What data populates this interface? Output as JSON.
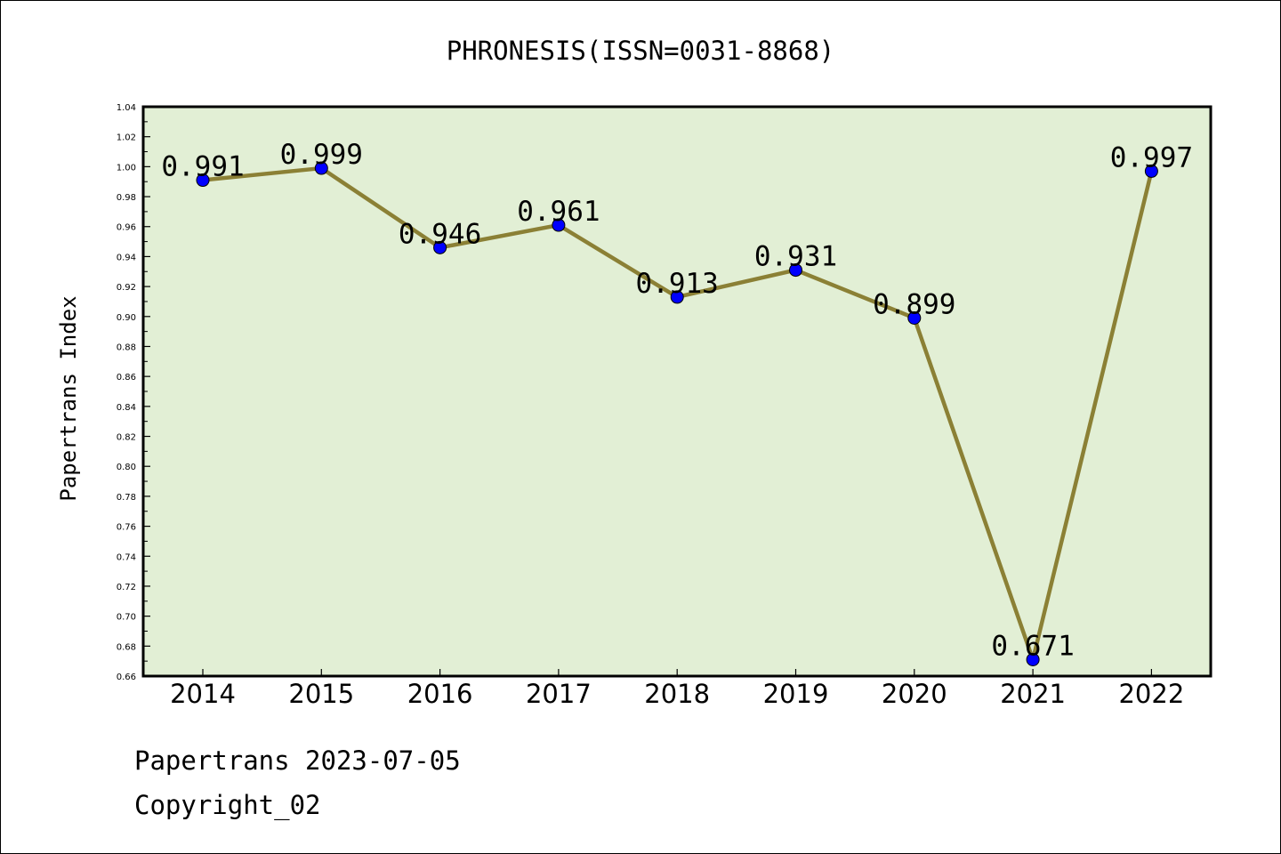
{
  "chart_data": {
    "type": "line",
    "title": "PHRONESIS(ISSN=0031-8868)",
    "xlabel": "",
    "ylabel": "Papertrans Index",
    "categories": [
      "2014",
      "2015",
      "2016",
      "2017",
      "2018",
      "2019",
      "2020",
      "2021",
      "2022"
    ],
    "values": [
      0.991,
      0.999,
      0.946,
      0.961,
      0.913,
      0.931,
      0.899,
      0.671,
      0.997
    ],
    "data_labels": [
      "0.991",
      "0.999",
      "0.946",
      "0.961",
      "0.913",
      "0.931",
      "0.899",
      "0.671",
      "0.997"
    ],
    "ylim": [
      0.66,
      1.04
    ],
    "yticks": [
      "0.66",
      "0.68",
      "0.70",
      "0.72",
      "0.74",
      "0.76",
      "0.78",
      "0.80",
      "0.82",
      "0.84",
      "0.86",
      "0.88",
      "0.90",
      "0.92",
      "0.94",
      "0.96",
      "0.98",
      "1.00",
      "1.02",
      "1.04"
    ],
    "grid": false,
    "colors": {
      "plot_background": "#e2efd5",
      "line": "#8b8035",
      "marker": "#0000ff"
    }
  },
  "footer": {
    "line1": "Papertrans 2023-07-05",
    "line2": "Copyright_02"
  }
}
